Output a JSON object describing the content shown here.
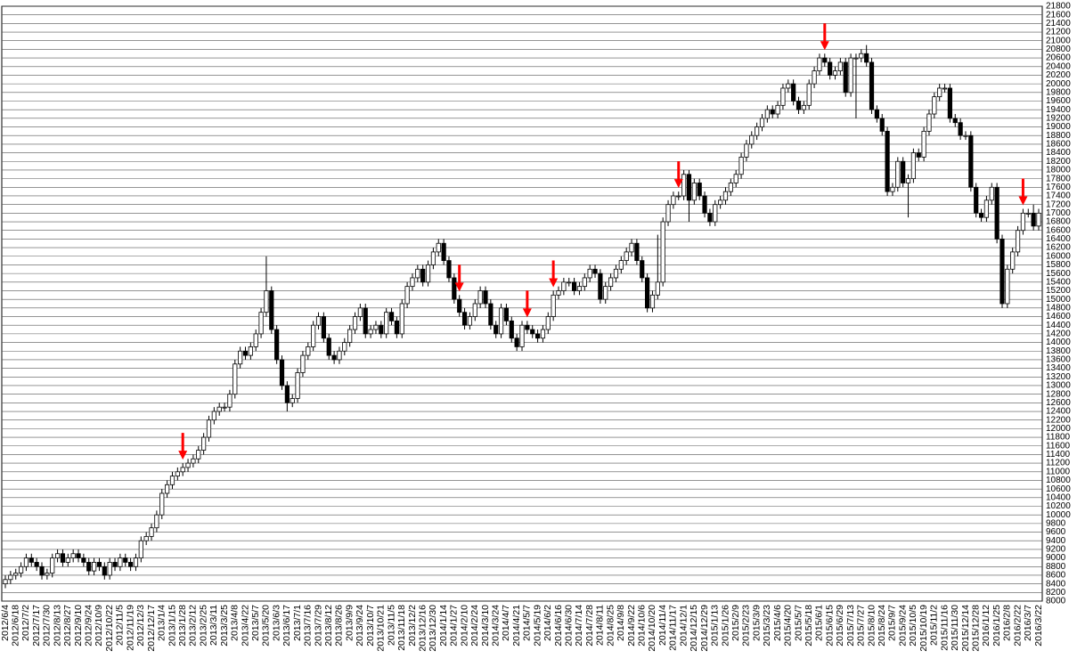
{
  "chart_data": {
    "type": "candlestick",
    "categories": [
      "2012/6/4",
      null,
      "2012/6/18",
      null,
      "2012/7/2",
      null,
      "2012/7/17",
      null,
      "2012/7/30",
      null,
      "2012/8/13",
      null,
      "2012/8/27",
      null,
      "2012/9/10",
      null,
      "2012/9/24",
      null,
      "2012/10/9",
      null,
      "2012/10/22",
      null,
      "2012/11/5",
      null,
      "2012/11/19",
      null,
      "2012/12/3",
      null,
      "2012/12/17",
      null,
      "2013/1/4",
      null,
      "2013/1/15",
      null,
      "2013/1/28",
      null,
      "2013/2/12",
      null,
      "2013/2/25",
      null,
      "2013/3/11",
      null,
      "2013/3/25",
      null,
      "2013/4/8",
      null,
      "2013/4/22",
      null,
      "2013/5/7",
      null,
      "2013/5/20",
      null,
      "2013/6/3",
      null,
      "2013/6/17",
      null,
      "2013/7/1",
      null,
      "2013/7/16",
      null,
      "2013/7/29",
      null,
      "2013/8/12",
      null,
      "2013/8/26",
      null,
      "2013/9/9",
      null,
      "2013/9/24",
      null,
      "2013/10/7",
      null,
      "2013/10/21",
      null,
      "2013/11/5",
      null,
      "2013/11/18",
      null,
      "2013/12/2",
      null,
      "2013/12/16",
      null,
      "2013/12/30",
      null,
      "2014/1/14",
      null,
      "2014/1/27",
      null,
      "2014/2/10",
      null,
      "2014/2/24",
      null,
      "2014/3/10",
      null,
      "2014/3/24",
      null,
      "2014/4/7",
      null,
      "2014/4/21",
      null,
      "2014/5/7",
      null,
      "2014/5/19",
      null,
      "2014/6/2",
      null,
      "2014/6/16",
      null,
      "2014/6/30",
      null,
      "2014/7/14",
      null,
      "2014/7/28",
      null,
      "2014/8/11",
      null,
      "2014/8/25",
      null,
      "2014/9/8",
      null,
      "2014/9/22",
      null,
      "2014/10/6",
      null,
      "2014/10/20",
      null,
      "2014/11/4",
      null,
      "2014/11/17",
      null,
      "2014/12/1",
      null,
      "2014/12/15",
      null,
      "2014/12/29",
      null,
      "2015/1/13",
      null,
      "2015/1/26",
      null,
      "2015/2/9",
      null,
      "2015/2/23",
      null,
      "2015/3/9",
      null,
      "2015/3/23",
      null,
      "2015/4/6",
      null,
      "2015/4/20",
      null,
      "2015/5/7",
      null,
      "2015/5/18",
      null,
      "2015/6/1",
      null,
      "2015/6/15",
      null,
      "2015/6/29",
      null,
      "2015/7/13",
      null,
      "2015/7/27",
      null,
      "2015/8/10",
      null,
      "2015/8/24",
      null,
      "2015/9/7",
      null,
      "2015/9/24",
      null,
      "2015/10/5",
      null,
      "2015/10/19",
      null,
      "2015/11/2",
      null,
      "2015/11/16",
      null,
      "2015/11/30",
      null,
      "2015/12/14",
      null,
      "2015/12/28",
      null,
      "2016/1/12",
      null,
      "2016/1/25",
      null,
      "2016/2/8",
      null,
      "2016/2/22",
      null,
      "2016/3/7",
      null,
      "2016/3/22"
    ],
    "open": [
      8400,
      8500,
      8600,
      8650,
      8800,
      9000,
      8900,
      8800,
      8600,
      8650,
      9000,
      9100,
      8900,
      9000,
      9100,
      9000,
      8900,
      8700,
      8900,
      8800,
      8600,
      8900,
      8800,
      9000,
      8900,
      8800,
      9000,
      9400,
      9500,
      9700,
      10000,
      10500,
      10700,
      10900,
      11000,
      11100,
      11200,
      11300,
      11500,
      11800,
      12200,
      12400,
      12500,
      12500,
      12800,
      13500,
      13800,
      13700,
      13900,
      14200,
      14700,
      15200,
      14300,
      13600,
      13000,
      12600,
      12700,
      13300,
      13700,
      13900,
      14400,
      14600,
      14100,
      13700,
      13600,
      13800,
      14000,
      14300,
      14600,
      14800,
      14200,
      14300,
      14400,
      14200,
      14700,
      14500,
      14200,
      14900,
      15300,
      15500,
      15700,
      15400,
      15800,
      16100,
      16300,
      15900,
      15500,
      15000,
      14700,
      14400,
      14600,
      14900,
      15200,
      14900,
      14400,
      14200,
      14800,
      14500,
      14100,
      13900,
      14400,
      14300,
      14200,
      14100,
      14300,
      14600,
      15100,
      15200,
      15400,
      15400,
      15200,
      15300,
      15500,
      15700,
      15600,
      15000,
      15300,
      15500,
      15700,
      15900,
      16100,
      16300,
      15900,
      15500,
      14800,
      15100,
      15400,
      16800,
      17200,
      17400,
      17400,
      17900,
      17300,
      17700,
      17400,
      17000,
      16800,
      17200,
      17300,
      17500,
      17700,
      17900,
      18300,
      18600,
      18800,
      19000,
      19200,
      19400,
      19300,
      19500,
      19900,
      20000,
      19600,
      19400,
      19500,
      20000,
      20300,
      20600,
      20500,
      20200,
      20300,
      20500,
      19800,
      20600,
      20600,
      20700,
      20500,
      19400,
      19200,
      18900,
      17500,
      17600,
      18200,
      17700,
      17800,
      18400,
      18300,
      18900,
      19300,
      19700,
      19900,
      19900,
      19200,
      19100,
      18800,
      18800,
      17600,
      17000,
      16900,
      17300,
      17600,
      16400,
      14900,
      15700,
      16100,
      16600,
      17000,
      17000,
      16700
    ],
    "high": [
      8600,
      8700,
      8750,
      8900,
      9100,
      9100,
      9000,
      8900,
      8750,
      9100,
      9200,
      9200,
      9100,
      9200,
      9200,
      9100,
      9000,
      9000,
      9000,
      8900,
      9000,
      9000,
      9100,
      9100,
      9000,
      9100,
      9500,
      9600,
      9800,
      10100,
      10600,
      10800,
      11000,
      11100,
      11200,
      11300,
      11400,
      11600,
      11900,
      12300,
      12500,
      12600,
      12600,
      12900,
      13600,
      13900,
      13900,
      14000,
      14300,
      14800,
      16000,
      15300,
      14400,
      13700,
      13100,
      12800,
      13400,
      13800,
      14000,
      14500,
      14700,
      14700,
      14200,
      13800,
      13900,
      14100,
      14400,
      14700,
      14900,
      14900,
      14400,
      14500,
      14500,
      14800,
      14800,
      14600,
      15000,
      15400,
      15600,
      15800,
      15800,
      15900,
      16200,
      16400,
      16400,
      16000,
      15600,
      15100,
      14800,
      14700,
      15000,
      15300,
      15300,
      15000,
      14500,
      14900,
      14900,
      14600,
      14200,
      14500,
      14500,
      14400,
      14300,
      14400,
      14700,
      15200,
      15300,
      15500,
      15500,
      15500,
      15400,
      15600,
      15800,
      15800,
      15700,
      15400,
      15600,
      15800,
      16000,
      16200,
      16400,
      16400,
      16000,
      15600,
      15200,
      16500,
      16900,
      17300,
      17500,
      17500,
      18000,
      18000,
      17800,
      17800,
      17500,
      17100,
      17300,
      17400,
      17600,
      17800,
      18000,
      18400,
      18700,
      18900,
      19100,
      19300,
      19500,
      19500,
      19600,
      20000,
      20100,
      20100,
      19700,
      19600,
      20100,
      20400,
      20700,
      20700,
      20600,
      20400,
      20600,
      20600,
      20700,
      20700,
      20800,
      20900,
      20600,
      19500,
      19300,
      19000,
      17700,
      18300,
      18300,
      17900,
      18500,
      18500,
      19000,
      19400,
      19800,
      20000,
      20000,
      20000,
      19300,
      19200,
      18900,
      18900,
      17700,
      17100,
      17400,
      17700,
      17700,
      16500,
      15800,
      16200,
      16700,
      17100,
      17100,
      17200,
      17100
    ],
    "low": [
      8300,
      8400,
      8500,
      8550,
      8700,
      8800,
      8700,
      8500,
      8500,
      8550,
      8900,
      8800,
      8800,
      8900,
      8900,
      8800,
      8600,
      8600,
      8700,
      8500,
      8500,
      8700,
      8700,
      8800,
      8700,
      8700,
      8900,
      9300,
      9400,
      9600,
      9900,
      10400,
      10600,
      10800,
      10900,
      11000,
      11100,
      11200,
      11400,
      11700,
      12100,
      12300,
      12400,
      12400,
      12700,
      13400,
      13600,
      13600,
      13800,
      14100,
      14600,
      14200,
      13500,
      12900,
      12400,
      12500,
      12600,
      13200,
      13600,
      13800,
      14300,
      14000,
      13600,
      13500,
      13500,
      13700,
      13900,
      14200,
      14500,
      14100,
      14100,
      14200,
      14100,
      14100,
      14400,
      14100,
      14100,
      14800,
      15200,
      15400,
      15300,
      15300,
      15700,
      16000,
      15800,
      15400,
      14900,
      14600,
      14300,
      14300,
      14500,
      14800,
      14800,
      14300,
      14100,
      14100,
      14400,
      14000,
      13800,
      13800,
      14200,
      14100,
      14000,
      14000,
      14200,
      14500,
      15000,
      15100,
      15300,
      15100,
      15100,
      15200,
      15400,
      15500,
      14900,
      14900,
      15200,
      15400,
      15600,
      15800,
      16000,
      15800,
      15400,
      14700,
      14700,
      15000,
      15300,
      16700,
      17100,
      17300,
      17300,
      16800,
      17200,
      17300,
      16900,
      16700,
      16700,
      17100,
      17200,
      17400,
      17600,
      17800,
      18200,
      18500,
      18700,
      18900,
      19100,
      19200,
      19200,
      19400,
      19800,
      19500,
      19300,
      19300,
      19400,
      19900,
      20200,
      20400,
      20100,
      20100,
      20200,
      19700,
      19700,
      19200,
      20500,
      20400,
      19300,
      19100,
      18800,
      17400,
      17400,
      17500,
      17600,
      16900,
      17700,
      18200,
      18200,
      18800,
      19200,
      19600,
      19800,
      19100,
      19000,
      18700,
      18700,
      17500,
      16900,
      16800,
      16800,
      17200,
      16300,
      14800,
      14800,
      15600,
      16000,
      16500,
      16900,
      16600,
      16600
    ],
    "close": [
      8500,
      8600,
      8650,
      8800,
      9000,
      8900,
      8800,
      8600,
      8650,
      9000,
      9100,
      8900,
      9000,
      9100,
      9000,
      8900,
      8700,
      8900,
      8800,
      8600,
      8900,
      8800,
      9000,
      8900,
      8800,
      9000,
      9400,
      9500,
      9700,
      10000,
      10500,
      10700,
      10900,
      11000,
      11100,
      11200,
      11300,
      11500,
      11800,
      12200,
      12400,
      12500,
      12500,
      12800,
      13500,
      13800,
      13700,
      13900,
      14200,
      14700,
      15200,
      14300,
      13600,
      13000,
      12600,
      12700,
      13300,
      13700,
      13900,
      14400,
      14600,
      14100,
      13700,
      13600,
      13800,
      14000,
      14300,
      14600,
      14800,
      14200,
      14300,
      14400,
      14200,
      14700,
      14500,
      14200,
      14900,
      15300,
      15500,
      15700,
      15400,
      15800,
      16100,
      16300,
      15900,
      15500,
      15000,
      14700,
      14400,
      14600,
      14900,
      15200,
      14900,
      14400,
      14200,
      14800,
      14500,
      14100,
      13900,
      14400,
      14300,
      14200,
      14100,
      14300,
      14600,
      15100,
      15200,
      15400,
      15400,
      15200,
      15300,
      15500,
      15700,
      15600,
      15000,
      15300,
      15500,
      15700,
      15900,
      16100,
      16300,
      15900,
      15500,
      14800,
      15100,
      15400,
      16800,
      17200,
      17400,
      17400,
      17900,
      17300,
      17700,
      17400,
      17000,
      16800,
      17200,
      17300,
      17500,
      17700,
      17900,
      18300,
      18600,
      18800,
      19000,
      19200,
      19400,
      19300,
      19500,
      19900,
      20000,
      19600,
      19400,
      19500,
      20000,
      20300,
      20600,
      20500,
      20200,
      20300,
      20500,
      19800,
      20600,
      20600,
      20700,
      20500,
      19400,
      19200,
      18900,
      17500,
      17600,
      18200,
      17700,
      17800,
      18400,
      18300,
      18900,
      19300,
      19700,
      19900,
      19900,
      19200,
      19100,
      18800,
      18800,
      17600,
      17000,
      16900,
      17300,
      17600,
      16400,
      14900,
      15700,
      16100,
      16600,
      17000,
      17000,
      16700,
      17000
    ],
    "ylim": [
      8000,
      21800
    ],
    "yticks": [
      8000,
      8200,
      8400,
      8600,
      8800,
      9000,
      9200,
      9400,
      9600,
      9800,
      10000,
      10200,
      10400,
      10600,
      10800,
      11000,
      11200,
      11400,
      11600,
      11800,
      12000,
      12200,
      12400,
      12600,
      12800,
      13000,
      13200,
      13400,
      13600,
      13800,
      14000,
      14200,
      14400,
      14600,
      14800,
      15000,
      15200,
      15400,
      15600,
      15800,
      16000,
      16200,
      16400,
      16600,
      16800,
      17000,
      17200,
      17400,
      17600,
      17800,
      18000,
      18200,
      18400,
      18600,
      18800,
      19000,
      19200,
      19400,
      19600,
      19800,
      20000,
      20200,
      20400,
      20600,
      20800,
      21000,
      21200,
      21400,
      21600,
      21800
    ],
    "grid": true,
    "up_color": "#ffffff",
    "down_color": "#000000",
    "arrow_color": "#ff0000",
    "arrows": [
      34,
      87,
      100,
      105,
      129,
      157,
      195
    ]
  }
}
